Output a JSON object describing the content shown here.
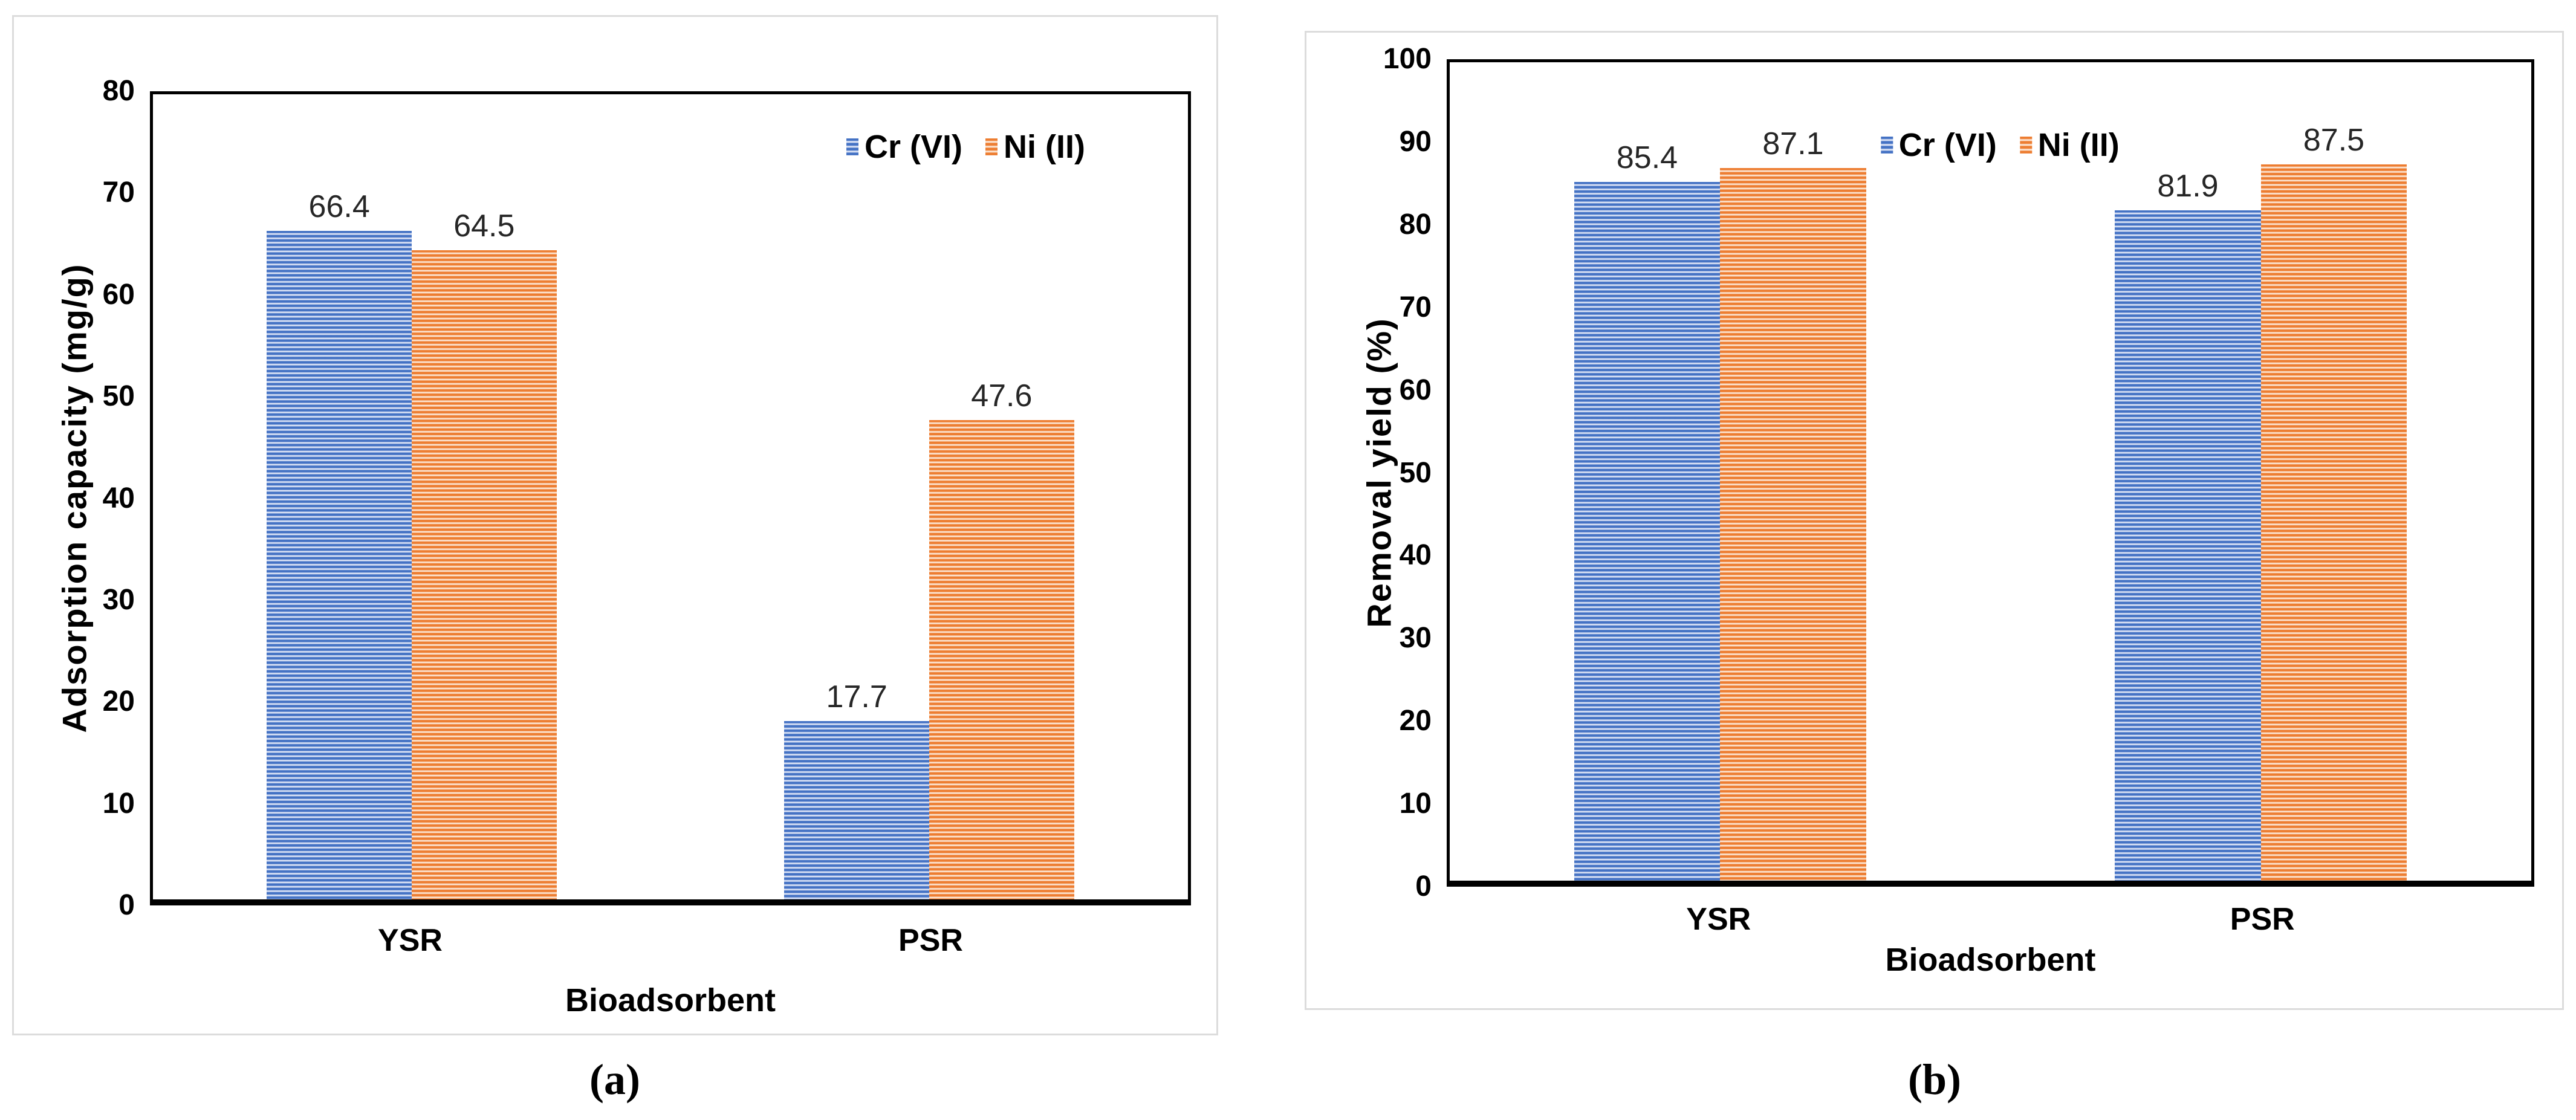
{
  "figure": {
    "caption_a": "(a)",
    "caption_b": "(b)"
  },
  "chart_data": [
    {
      "type": "bar",
      "panel": "a",
      "title": "",
      "categories": [
        "YSR",
        "PSR"
      ],
      "series": [
        {
          "name": "Cr (VI)",
          "color": "#4472C4",
          "stripe_light": "#D9E1F4",
          "values": [
            66.4,
            17.7
          ],
          "value_labels": [
            "66.4",
            "17.7"
          ]
        },
        {
          "name": "Ni (II)",
          "color": "#ED7D31",
          "stripe_light": "#FBE3D0",
          "values": [
            64.5,
            47.6
          ],
          "value_labels": [
            "64.5",
            "47.6"
          ]
        }
      ],
      "xlabel": "Bioadsorbent",
      "ylabel": "Adsorption capacity (mg/g)",
      "ylim": [
        0,
        80
      ],
      "yticks": [
        0,
        10,
        20,
        30,
        40,
        50,
        60,
        70,
        80
      ],
      "legend": {
        "position": "top-right",
        "entries": [
          "Cr (VI)",
          "Ni (II)"
        ]
      },
      "grid": false,
      "bar_pattern": "horizontal-stripes"
    },
    {
      "type": "bar",
      "panel": "b",
      "title": "",
      "categories": [
        "YSR",
        "PSR"
      ],
      "series": [
        {
          "name": "Cr (VI)",
          "color": "#4472C4",
          "stripe_light": "#D9E1F4",
          "values": [
            85.4,
            81.9
          ],
          "value_labels": [
            "85.4",
            "81.9"
          ]
        },
        {
          "name": "Ni (II)",
          "color": "#ED7D31",
          "stripe_light": "#FBE3D0",
          "values": [
            87.1,
            87.5
          ],
          "value_labels": [
            "87.1",
            "87.5"
          ]
        }
      ],
      "xlabel": "Bioadsorbent",
      "ylabel": "Removal yield (%)",
      "ylim": [
        0,
        100
      ],
      "yticks": [
        0,
        10,
        20,
        30,
        40,
        50,
        60,
        70,
        80,
        90,
        100
      ],
      "legend": {
        "position": "top-center",
        "entries": [
          "Cr (VI)",
          "Ni (II)"
        ]
      },
      "grid": false,
      "bar_pattern": "horizontal-stripes"
    }
  ]
}
